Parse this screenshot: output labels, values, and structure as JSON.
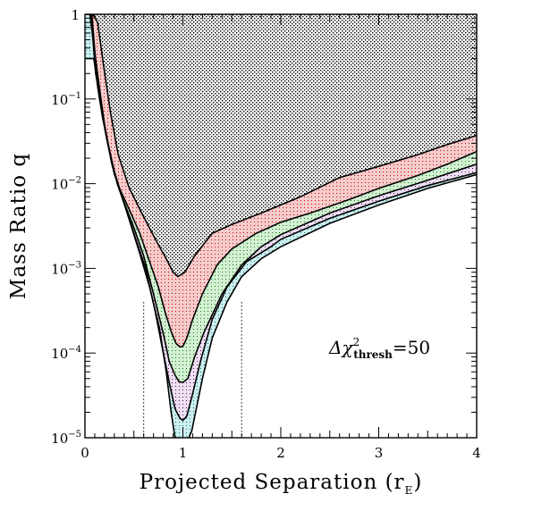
{
  "chart_data": {
    "type": "area",
    "xlabel": "Projected Separation (r",
    "xlabel_sub": "E",
    "xlabel_close": ")",
    "ylabel": "Mass Ratio q",
    "xlim": [
      0,
      4
    ],
    "ylim": [
      1e-05,
      1
    ],
    "y_scale": "log",
    "grid": false,
    "x_ticks": [
      {
        "value": 0,
        "label": "0"
      },
      {
        "value": 1,
        "label": "1"
      },
      {
        "value": 2,
        "label": "2"
      },
      {
        "value": 3,
        "label": "3"
      },
      {
        "value": 4,
        "label": "4"
      }
    ],
    "y_ticks": [
      {
        "value": 1,
        "mant": "1",
        "exp": ""
      },
      {
        "value": 0.1,
        "mant": "10",
        "exp": "−1"
      },
      {
        "value": 0.01,
        "mant": "10",
        "exp": "−2"
      },
      {
        "value": 0.001,
        "mant": "10",
        "exp": "−3"
      },
      {
        "value": 0.0001,
        "mant": "10",
        "exp": "−4"
      },
      {
        "value": 1e-05,
        "mant": "10",
        "exp": "−5"
      }
    ],
    "annotation": {
      "delta": "Δχ",
      "sup": "2",
      "sub": "thresh",
      "value": "=50"
    },
    "vertical_lines": [
      0.6,
      1.6
    ],
    "bands": [
      {
        "fill": "#f2c8c8",
        "from": 0,
        "to": 1
      },
      {
        "fill": "#cfeecf",
        "from": 1,
        "to": 2
      },
      {
        "fill": "#e7dcee",
        "from": 2,
        "to": 3
      },
      {
        "fill": "#c8ecec",
        "from": 3,
        "to": 4
      }
    ],
    "curves": [
      {
        "x": [
          0.01,
          0.04,
          0.08,
          0.13,
          0.19,
          0.26,
          0.34,
          0.45,
          0.58,
          0.72,
          0.83,
          0.9,
          0.95,
          1.02,
          1.12,
          1.3,
          1.5,
          1.8,
          2.2,
          2.6,
          3.0,
          3.4,
          3.7,
          4.0
        ],
        "y": [
          1,
          1,
          1,
          0.8,
          0.25,
          0.07,
          0.022,
          0.009,
          0.0045,
          0.0022,
          0.0013,
          0.0009,
          0.0008,
          0.0009,
          0.0014,
          0.0026,
          0.0033,
          0.0045,
          0.007,
          0.0118,
          0.016,
          0.022,
          0.029,
          0.037
        ]
      },
      {
        "x": [
          0.01,
          0.05,
          0.1,
          0.15,
          0.2,
          0.27,
          0.35,
          0.45,
          0.56,
          0.66,
          0.75,
          0.82,
          0.88,
          0.93,
          0.97,
          1.0,
          1.04,
          1.1,
          1.2,
          1.35,
          1.5,
          1.75,
          2.0,
          2.3,
          2.7,
          3.0,
          3.4,
          3.7,
          4.0
        ],
        "y": [
          1,
          1,
          0.35,
          0.13,
          0.05,
          0.018,
          0.009,
          0.005,
          0.0026,
          0.0012,
          0.0006,
          0.0003,
          0.00018,
          0.00013,
          0.000118,
          0.00012,
          0.00015,
          0.00025,
          0.0005,
          0.0011,
          0.0017,
          0.0026,
          0.0035,
          0.0045,
          0.0065,
          0.0088,
          0.0125,
          0.017,
          0.024
        ]
      },
      {
        "x": [
          0.01,
          0.06,
          0.11,
          0.16,
          0.22,
          0.3,
          0.4,
          0.5,
          0.6,
          0.7,
          0.8,
          0.86,
          0.92,
          0.96,
          1.0,
          1.05,
          1.12,
          1.22,
          1.4,
          1.6,
          1.8,
          2.0,
          2.5,
          3.0,
          3.5,
          4.0
        ],
        "y": [
          1,
          1,
          0.2,
          0.09,
          0.035,
          0.013,
          0.006,
          0.003,
          0.0014,
          0.0005,
          0.00017,
          8e-05,
          5.5e-05,
          4.6e-05,
          4.5e-05,
          5e-05,
          9e-05,
          0.00018,
          0.0005,
          0.0011,
          0.0018,
          0.0025,
          0.0045,
          0.0072,
          0.011,
          0.017
        ]
      },
      {
        "x": [
          0.01,
          0.07,
          0.13,
          0.18,
          0.25,
          0.33,
          0.42,
          0.52,
          0.62,
          0.72,
          0.8,
          0.87,
          0.92,
          0.97,
          1.0,
          1.04,
          1.1,
          1.18,
          1.3,
          1.45,
          1.65,
          1.9,
          2.0,
          2.5,
          3.0,
          3.5,
          4.0
        ],
        "y": [
          1,
          1,
          0.14,
          0.06,
          0.025,
          0.01,
          0.005,
          0.0022,
          0.001,
          0.0003,
          0.0001,
          4e-05,
          2.2e-05,
          1.7e-05,
          1.6e-05,
          1.8e-05,
          3.3e-05,
          8e-05,
          0.00025,
          0.0006,
          0.0012,
          0.0018,
          0.0022,
          0.0039,
          0.0062,
          0.0095,
          0.0135
        ]
      }
    ],
    "cyan_outer": {
      "x": [
        0.01,
        0.09,
        0.15,
        0.21,
        0.28,
        0.37,
        0.46,
        0.56,
        0.66,
        0.76,
        0.83,
        0.88,
        0.92,
        0.95
      ],
      "y": [
        0.3,
        0.3,
        0.1,
        0.04,
        0.016,
        0.0075,
        0.0035,
        0.0015,
        0.0006,
        0.0002,
        6e-05,
        2e-05,
        1e-05,
        1e-05
      ]
    },
    "cyan_inner_right": {
      "x": [
        1.06,
        1.09,
        1.13,
        1.2,
        1.3,
        1.45,
        1.6,
        1.8,
        2.0,
        2.5,
        3.0,
        3.5,
        4.0
      ],
      "y": [
        1e-05,
        1.2e-05,
        2e-05,
        5e-05,
        0.00015,
        0.0004,
        0.0008,
        0.0013,
        0.0018,
        0.0034,
        0.0056,
        0.0088,
        0.0128
      ]
    }
  }
}
